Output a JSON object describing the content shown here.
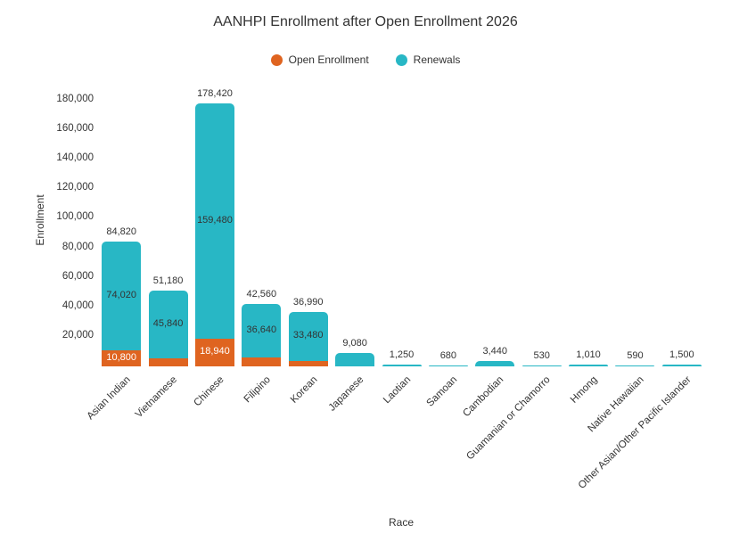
{
  "chart_data": {
    "type": "bar",
    "stacked": true,
    "title": "AANHPI Enrollment after Open Enrollment 2026",
    "xlabel": "Race",
    "ylabel": "Enrollment",
    "ylim": [
      0,
      180000
    ],
    "ytick_step": 20000,
    "ytick_labels": [
      "20,000",
      "40,000",
      "60,000",
      "80,000",
      "100,000",
      "120,000",
      "140,000",
      "160,000",
      "180,000"
    ],
    "grid": false,
    "legend_position": "top-center",
    "categories": [
      "Asian Indian",
      "Vietnamese",
      "Chinese",
      "Filipino",
      "Korean",
      "Japanese",
      "Laotian",
      "Samoan",
      "Cambodian",
      "Guamanian or Chamorro",
      "Hmong",
      "Native Hawaiian",
      "Other Asian/Other Pacific Islander"
    ],
    "series": [
      {
        "name": "Open Enrollment",
        "color": "#DF6420",
        "values": [
          10800,
          5340,
          18940,
          5920,
          3510,
          0,
          0,
          0,
          0,
          0,
          0,
          0,
          0
        ]
      },
      {
        "name": "Renewals",
        "color": "#28B7C5",
        "values": [
          74020,
          45840,
          159480,
          36640,
          33480,
          9080,
          1250,
          680,
          3440,
          530,
          1010,
          590,
          1500
        ]
      }
    ],
    "totals": [
      84820,
      51180,
      178420,
      42560,
      36990,
      9080,
      1250,
      680,
      3440,
      530,
      1010,
      590,
      1500
    ],
    "total_labels": [
      "84,820",
      "51,180",
      "178,420",
      "42,560",
      "36,990",
      "9,080",
      "1,250",
      "680",
      "3,440",
      "530",
      "1,010",
      "590",
      "1,500"
    ],
    "inside_labels": {
      "open": [
        "10,800",
        null,
        "18,940",
        null,
        null,
        null,
        null,
        null,
        null,
        null,
        null,
        null,
        null
      ],
      "renewals": [
        "74,020",
        "45,840",
        "159,480",
        "36,640",
        "33,480",
        null,
        null,
        null,
        null,
        null,
        null,
        null,
        null
      ]
    },
    "colors": {
      "open_enrollment": "#DF6420",
      "renewals": "#28B7C5",
      "text": "#333333",
      "label_on_open": "#FFFFFF",
      "label_on_renewals": "#333333",
      "background": "#FFFFFF"
    }
  }
}
